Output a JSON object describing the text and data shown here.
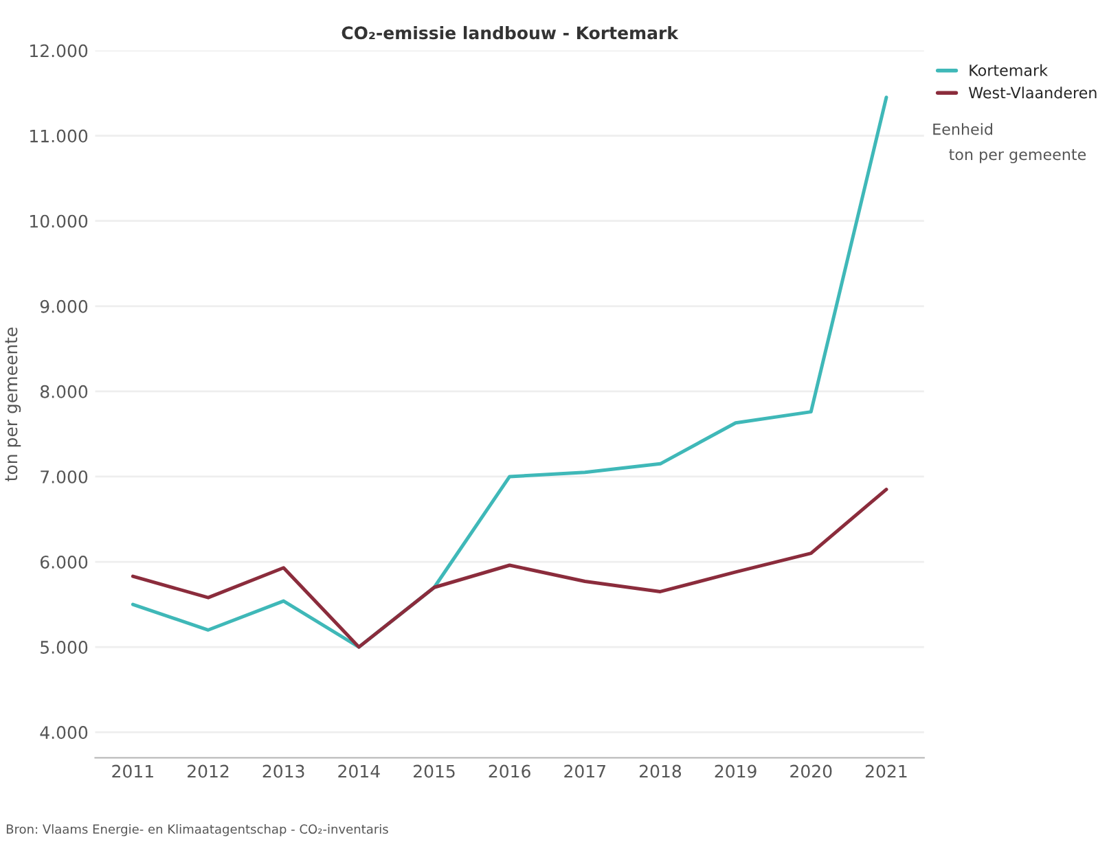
{
  "chart_data": {
    "type": "line",
    "title": "CO₂-emissie landbouw - Kortemark",
    "ylabel": "ton per gemeente",
    "categories": [
      "2011",
      "2012",
      "2013",
      "2014",
      "2015",
      "2016",
      "2017",
      "2018",
      "2019",
      "2020",
      "2021"
    ],
    "series": [
      {
        "name": "Kortemark",
        "color": "#3fb8b8",
        "values": [
          5500,
          5200,
          5540,
          5000,
          5700,
          7000,
          7050,
          7150,
          7630,
          7760,
          11450
        ]
      },
      {
        "name": "West-Vlaanderen",
        "color": "#8b2c3c",
        "values": [
          5830,
          5580,
          5930,
          5000,
          5700,
          5960,
          5770,
          5650,
          5880,
          6100,
          6850
        ]
      }
    ],
    "ylim": [
      3700,
      12000
    ],
    "yticks": [
      {
        "value": 4000,
        "label": "4.000"
      },
      {
        "value": 5000,
        "label": "5.000"
      },
      {
        "value": 6000,
        "label": "6.000"
      },
      {
        "value": 7000,
        "label": "7.000"
      },
      {
        "value": 8000,
        "label": "8.000"
      },
      {
        "value": 9000,
        "label": "9.000"
      },
      {
        "value": 10000,
        "label": "10.000"
      },
      {
        "value": 11000,
        "label": "11.000"
      },
      {
        "value": 12000,
        "label": "12.000"
      }
    ],
    "grid": "y",
    "legend": "top right",
    "marker": "none",
    "line_style": "solid",
    "annotations": [
      "Eenheid",
      "ton per gemeente",
      "Bron: Vlaams Energie- en Klimaatagentschap - CO₂-inventaris"
    ]
  }
}
